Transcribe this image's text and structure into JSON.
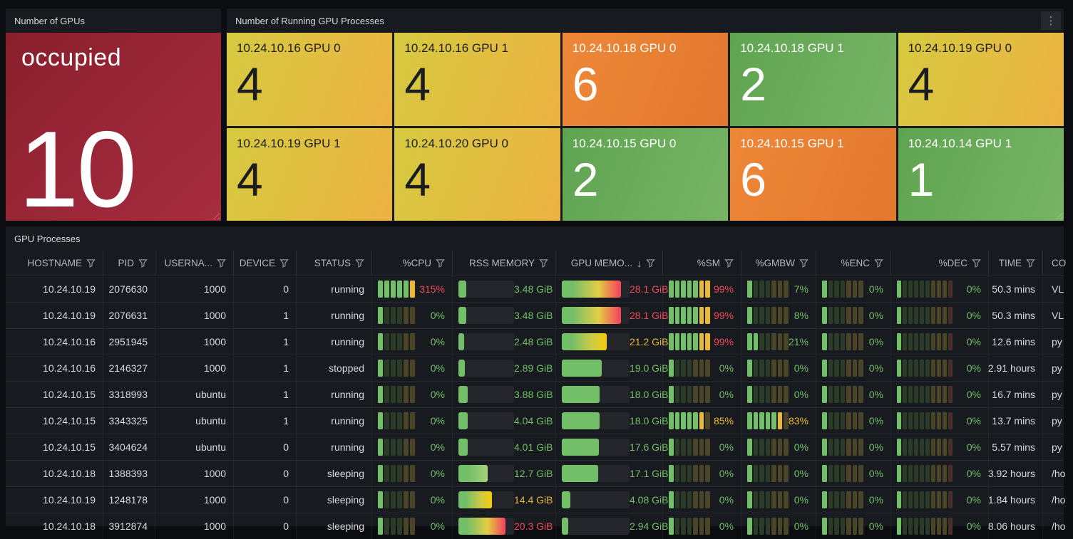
{
  "colors": {
    "green": "#73BF69",
    "yellow": "#EAB839",
    "red": "#F2495C",
    "dim_green": "#2C3B28",
    "dim_olive": "#4A4528",
    "dim_maroon": "#4A2E2A",
    "tile_yellow_from": "#D6CA3F",
    "tile_yellow_to": "#EDB243",
    "tile_orange_from": "#EE8838",
    "tile_orange_to": "#E2772E",
    "tile_green_from": "#5FA451",
    "tile_green_to": "#77B465",
    "stat_red_from": "#8A1F2C",
    "stat_red_to": "#A72D40"
  },
  "stat_panel": {
    "title": "Number of GPUs",
    "label": "occupied",
    "value": "10"
  },
  "tiles_panel": {
    "title": "Number of Running GPU Processes",
    "menu_icon": "kebab-menu-icon",
    "tiles": [
      {
        "label": "10.24.10.16 GPU 0",
        "value": "4",
        "color": "yellow"
      },
      {
        "label": "10.24.10.16 GPU 1",
        "value": "4",
        "color": "yellow"
      },
      {
        "label": "10.24.10.18 GPU 0",
        "value": "6",
        "color": "orange"
      },
      {
        "label": "10.24.10.18 GPU 1",
        "value": "2",
        "color": "green"
      },
      {
        "label": "10.24.10.19 GPU 0",
        "value": "4",
        "color": "yellow"
      },
      {
        "label": "10.24.10.19 GPU 1",
        "value": "4",
        "color": "yellow"
      },
      {
        "label": "10.24.10.20 GPU 0",
        "value": "4",
        "color": "yellow"
      },
      {
        "label": "10.24.10.15 GPU 0",
        "value": "2",
        "color": "green"
      },
      {
        "label": "10.24.10.15 GPU 1",
        "value": "6",
        "color": "orange"
      },
      {
        "label": "10.24.10.14 GPU 1",
        "value": "1",
        "color": "green"
      }
    ]
  },
  "table_panel": {
    "title": "GPU Processes",
    "columns": [
      {
        "id": "hostname",
        "label": "HOSTNAME",
        "filter": true,
        "type": "text"
      },
      {
        "id": "pid",
        "label": "PID",
        "filter": true,
        "type": "text"
      },
      {
        "id": "username",
        "label": "USERNA...",
        "filter": true,
        "type": "text"
      },
      {
        "id": "device",
        "label": "DEVICE",
        "filter": true,
        "type": "text"
      },
      {
        "id": "status",
        "label": "STATUS",
        "filter": true,
        "type": "text"
      },
      {
        "id": "cpu",
        "label": "%CPU",
        "filter": true,
        "type": "lcd",
        "cells": 6
      },
      {
        "id": "rss",
        "label": "RSS MEMORY",
        "filter": true,
        "type": "bar",
        "max": 24
      },
      {
        "id": "gpu",
        "label": "GPU MEMO...",
        "filter": true,
        "sort": "desc",
        "type": "bar",
        "max": 32
      },
      {
        "id": "sm",
        "label": "%SM",
        "filter": true,
        "type": "lcd",
        "cells": 7
      },
      {
        "id": "gmbw",
        "label": "%GMBW",
        "filter": true,
        "type": "lcd",
        "cells": 7
      },
      {
        "id": "enc",
        "label": "%ENC",
        "filter": true,
        "type": "lcd",
        "cells": 7
      },
      {
        "id": "dec",
        "label": "%DEC",
        "filter": true,
        "type": "lcd",
        "cells": 10
      },
      {
        "id": "time",
        "label": "TIME",
        "filter": true,
        "type": "text"
      },
      {
        "id": "command",
        "label": "CO",
        "filter": false,
        "type": "text-left"
      }
    ],
    "rows": [
      {
        "hostname": "10.24.10.19",
        "pid": "2076630",
        "username": "1000",
        "device": "0",
        "status": "running",
        "cpu": {
          "text": "315%",
          "pct": 100,
          "color": "red"
        },
        "rss": {
          "text": "3.48 GiB",
          "value": 3.48,
          "color": "green",
          "tone": "g"
        },
        "gpu": {
          "text": "28.1 GiB",
          "value": 28.1,
          "color": "red",
          "tone": "gyr"
        },
        "sm": {
          "text": "99%",
          "pct": 99,
          "color": "red"
        },
        "gmbw": {
          "text": "7%",
          "pct": 7,
          "color": "green"
        },
        "enc": {
          "text": "0%",
          "pct": 0,
          "color": "green"
        },
        "dec": {
          "text": "0%",
          "pct": 0,
          "color": "green"
        },
        "time": "50.3 mins",
        "command": "VL"
      },
      {
        "hostname": "10.24.10.19",
        "pid": "2076631",
        "username": "1000",
        "device": "1",
        "status": "running",
        "cpu": {
          "text": "0%",
          "pct": 0,
          "color": "green"
        },
        "rss": {
          "text": "3.48 GiB",
          "value": 3.48,
          "color": "green",
          "tone": "g"
        },
        "gpu": {
          "text": "28.1 GiB",
          "value": 28.1,
          "color": "red",
          "tone": "gyr"
        },
        "sm": {
          "text": "99%",
          "pct": 99,
          "color": "red"
        },
        "gmbw": {
          "text": "8%",
          "pct": 8,
          "color": "green"
        },
        "enc": {
          "text": "0%",
          "pct": 0,
          "color": "green"
        },
        "dec": {
          "text": "0%",
          "pct": 0,
          "color": "green"
        },
        "time": "50.3 mins",
        "command": "VL"
      },
      {
        "hostname": "10.24.10.16",
        "pid": "2951945",
        "username": "1000",
        "device": "1",
        "status": "running",
        "cpu": {
          "text": "0%",
          "pct": 0,
          "color": "green"
        },
        "rss": {
          "text": "2.48 GiB",
          "value": 2.48,
          "color": "green",
          "tone": "g"
        },
        "gpu": {
          "text": "21.2 GiB",
          "value": 21.2,
          "color": "yellow",
          "tone": "gy"
        },
        "sm": {
          "text": "99%",
          "pct": 99,
          "color": "red"
        },
        "gmbw": {
          "text": "21%",
          "pct": 21,
          "color": "green"
        },
        "enc": {
          "text": "0%",
          "pct": 0,
          "color": "green"
        },
        "dec": {
          "text": "0%",
          "pct": 0,
          "color": "green"
        },
        "time": "12.6 mins",
        "command": "py"
      },
      {
        "hostname": "10.24.10.16",
        "pid": "2146327",
        "username": "1000",
        "device": "1",
        "status": "stopped",
        "cpu": {
          "text": "0%",
          "pct": 0,
          "color": "green"
        },
        "rss": {
          "text": "2.89 GiB",
          "value": 2.89,
          "color": "green",
          "tone": "g"
        },
        "gpu": {
          "text": "19.0 GiB",
          "value": 19.0,
          "color": "green",
          "tone": "g"
        },
        "sm": {
          "text": "0%",
          "pct": 0,
          "color": "green"
        },
        "gmbw": {
          "text": "0%",
          "pct": 0,
          "color": "green"
        },
        "enc": {
          "text": "0%",
          "pct": 0,
          "color": "green"
        },
        "dec": {
          "text": "0%",
          "pct": 0,
          "color": "green"
        },
        "time": "2.91 hours",
        "command": "py"
      },
      {
        "hostname": "10.24.10.15",
        "pid": "3318993",
        "username": "ubuntu",
        "device": "1",
        "status": "running",
        "cpu": {
          "text": "0%",
          "pct": 0,
          "color": "green"
        },
        "rss": {
          "text": "3.88 GiB",
          "value": 3.88,
          "color": "green",
          "tone": "g"
        },
        "gpu": {
          "text": "18.0 GiB",
          "value": 18.0,
          "color": "green",
          "tone": "g"
        },
        "sm": {
          "text": "0%",
          "pct": 0,
          "color": "green"
        },
        "gmbw": {
          "text": "0%",
          "pct": 0,
          "color": "green"
        },
        "enc": {
          "text": "0%",
          "pct": 0,
          "color": "green"
        },
        "dec": {
          "text": "0%",
          "pct": 0,
          "color": "green"
        },
        "time": "16.7 mins",
        "command": "py"
      },
      {
        "hostname": "10.24.10.15",
        "pid": "3343325",
        "username": "ubuntu",
        "device": "1",
        "status": "running",
        "cpu": {
          "text": "0%",
          "pct": 0,
          "color": "green"
        },
        "rss": {
          "text": "4.04 GiB",
          "value": 4.04,
          "color": "green",
          "tone": "g"
        },
        "gpu": {
          "text": "18.0 GiB",
          "value": 18.0,
          "color": "green",
          "tone": "g"
        },
        "sm": {
          "text": "85%",
          "pct": 85,
          "color": "yellow"
        },
        "gmbw": {
          "text": "83%",
          "pct": 83,
          "color": "yellow"
        },
        "enc": {
          "text": "0%",
          "pct": 0,
          "color": "green"
        },
        "dec": {
          "text": "0%",
          "pct": 0,
          "color": "green"
        },
        "time": "13.7 mins",
        "command": "py"
      },
      {
        "hostname": "10.24.10.15",
        "pid": "3404624",
        "username": "ubuntu",
        "device": "0",
        "status": "running",
        "cpu": {
          "text": "0%",
          "pct": 0,
          "color": "green"
        },
        "rss": {
          "text": "4.01 GiB",
          "value": 4.01,
          "color": "green",
          "tone": "g"
        },
        "gpu": {
          "text": "17.6 GiB",
          "value": 17.6,
          "color": "green",
          "tone": "g"
        },
        "sm": {
          "text": "0%",
          "pct": 0,
          "color": "green"
        },
        "gmbw": {
          "text": "0%",
          "pct": 0,
          "color": "green"
        },
        "enc": {
          "text": "0%",
          "pct": 0,
          "color": "green"
        },
        "dec": {
          "text": "0%",
          "pct": 0,
          "color": "green"
        },
        "time": "5.57 mins",
        "command": "py"
      },
      {
        "hostname": "10.24.10.18",
        "pid": "1388393",
        "username": "1000",
        "device": "0",
        "status": "sleeping",
        "cpu": {
          "text": "0%",
          "pct": 0,
          "color": "green"
        },
        "rss": {
          "text": "12.7 GiB",
          "value": 12.7,
          "color": "green",
          "tone": "gl"
        },
        "gpu": {
          "text": "17.1 GiB",
          "value": 17.1,
          "color": "green",
          "tone": "g"
        },
        "sm": {
          "text": "0%",
          "pct": 0,
          "color": "green"
        },
        "gmbw": {
          "text": "0%",
          "pct": 0,
          "color": "green"
        },
        "enc": {
          "text": "0%",
          "pct": 0,
          "color": "green"
        },
        "dec": {
          "text": "0%",
          "pct": 0,
          "color": "green"
        },
        "time": "3.92 hours",
        "command": "/ho"
      },
      {
        "hostname": "10.24.10.19",
        "pid": "1248178",
        "username": "1000",
        "device": "0",
        "status": "sleeping",
        "cpu": {
          "text": "0%",
          "pct": 0,
          "color": "green"
        },
        "rss": {
          "text": "14.4 GiB",
          "value": 14.4,
          "color": "yellow",
          "tone": "gy"
        },
        "gpu": {
          "text": "4.08 GiB",
          "value": 4.08,
          "color": "green",
          "tone": "g"
        },
        "sm": {
          "text": "0%",
          "pct": 0,
          "color": "green"
        },
        "gmbw": {
          "text": "0%",
          "pct": 0,
          "color": "green"
        },
        "enc": {
          "text": "0%",
          "pct": 0,
          "color": "green"
        },
        "dec": {
          "text": "0%",
          "pct": 0,
          "color": "green"
        },
        "time": "1.84 hours",
        "command": "/ho"
      },
      {
        "hostname": "10.24.10.18",
        "pid": "3912874",
        "username": "1000",
        "device": "0",
        "status": "sleeping",
        "cpu": {
          "text": "0%",
          "pct": 0,
          "color": "green"
        },
        "rss": {
          "text": "20.3 GiB",
          "value": 20.3,
          "color": "red",
          "tone": "gyr"
        },
        "gpu": {
          "text": "2.94 GiB",
          "value": 2.94,
          "color": "green",
          "tone": "g"
        },
        "sm": {
          "text": "0%",
          "pct": 0,
          "color": "green"
        },
        "gmbw": {
          "text": "0%",
          "pct": 0,
          "color": "green"
        },
        "enc": {
          "text": "0%",
          "pct": 0,
          "color": "green"
        },
        "dec": {
          "text": "0%",
          "pct": 0,
          "color": "green"
        },
        "time": "8.06 hours",
        "command": "/ho"
      }
    ]
  }
}
